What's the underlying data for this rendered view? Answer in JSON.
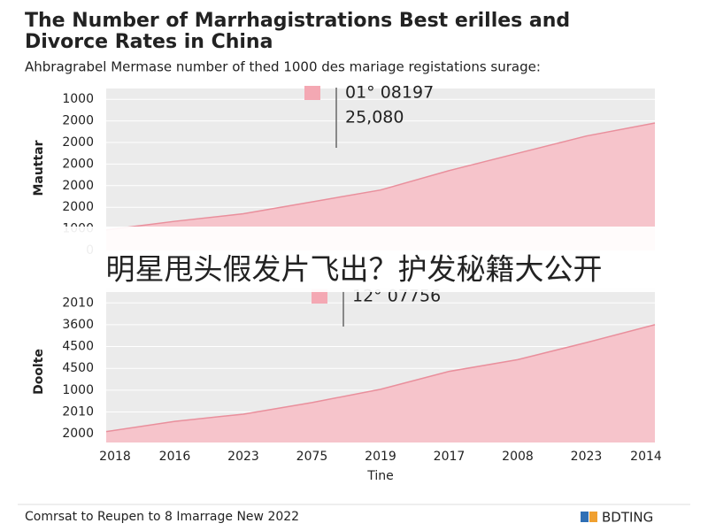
{
  "title": [
    "The Number of Marrhagistrations Best erilles and",
    "Divorce Rates in China"
  ],
  "subtitle": "Ahbragrabel Mermase number of thed 1000 des mariage registations surage:",
  "chart_data": [
    {
      "type": "area",
      "y_label": "Mauttar",
      "color": "#f6c4cb",
      "line_color": "#e98f9c",
      "background": "#ebebeb",
      "annotation": [
        "01° 08197",
        "25,080"
      ],
      "values": [
        0.95,
        1.35,
        1.7,
        2.25,
        2.8,
        3.7,
        4.5,
        5.3,
        5.9
      ],
      "ylim": [
        0,
        7.5
      ],
      "yticks": [
        {
          "value": 7,
          "label": "1000"
        },
        {
          "value": 6,
          "label": "2000"
        },
        {
          "value": 5,
          "label": "2000"
        },
        {
          "value": 4,
          "label": "2000"
        },
        {
          "value": 3,
          "label": "2000"
        },
        {
          "value": 2,
          "label": "2000"
        },
        {
          "value": 1,
          "label": "1000"
        },
        {
          "value": 0,
          "label": "0"
        }
      ],
      "grid": true
    },
    {
      "type": "area",
      "y_label": "Doolte",
      "x_label": "Tine",
      "color": "#f6c4cb",
      "line_color": "#e98f9c",
      "background": "#ebebeb",
      "annotation": [
        "12° 07756"
      ],
      "categories": [
        "2018",
        "2016",
        "2023",
        "2075",
        "2019",
        "2017",
        "2008",
        "2023",
        "2014"
      ],
      "values": [
        0.1,
        0.57,
        0.9,
        1.43,
        2.04,
        2.86,
        3.4,
        4.18,
        5.0
      ],
      "ylim": [
        -0.4,
        6.7
      ],
      "yticks": [
        {
          "value": 6,
          "label": "2010"
        },
        {
          "value": 5,
          "label": "3600"
        },
        {
          "value": 4,
          "label": "4500"
        },
        {
          "value": 3,
          "label": "4500"
        },
        {
          "value": 2,
          "label": "1000"
        },
        {
          "value": 1,
          "label": "2010"
        },
        {
          "value": 0,
          "label": "2000"
        }
      ],
      "grid": true
    }
  ],
  "overlay_text": "明星甩头假发片飞出？护发秘籍大公开",
  "footer": "Comrsat to Reupen to 8 Imarrage New 2022",
  "brand": "BDTING"
}
